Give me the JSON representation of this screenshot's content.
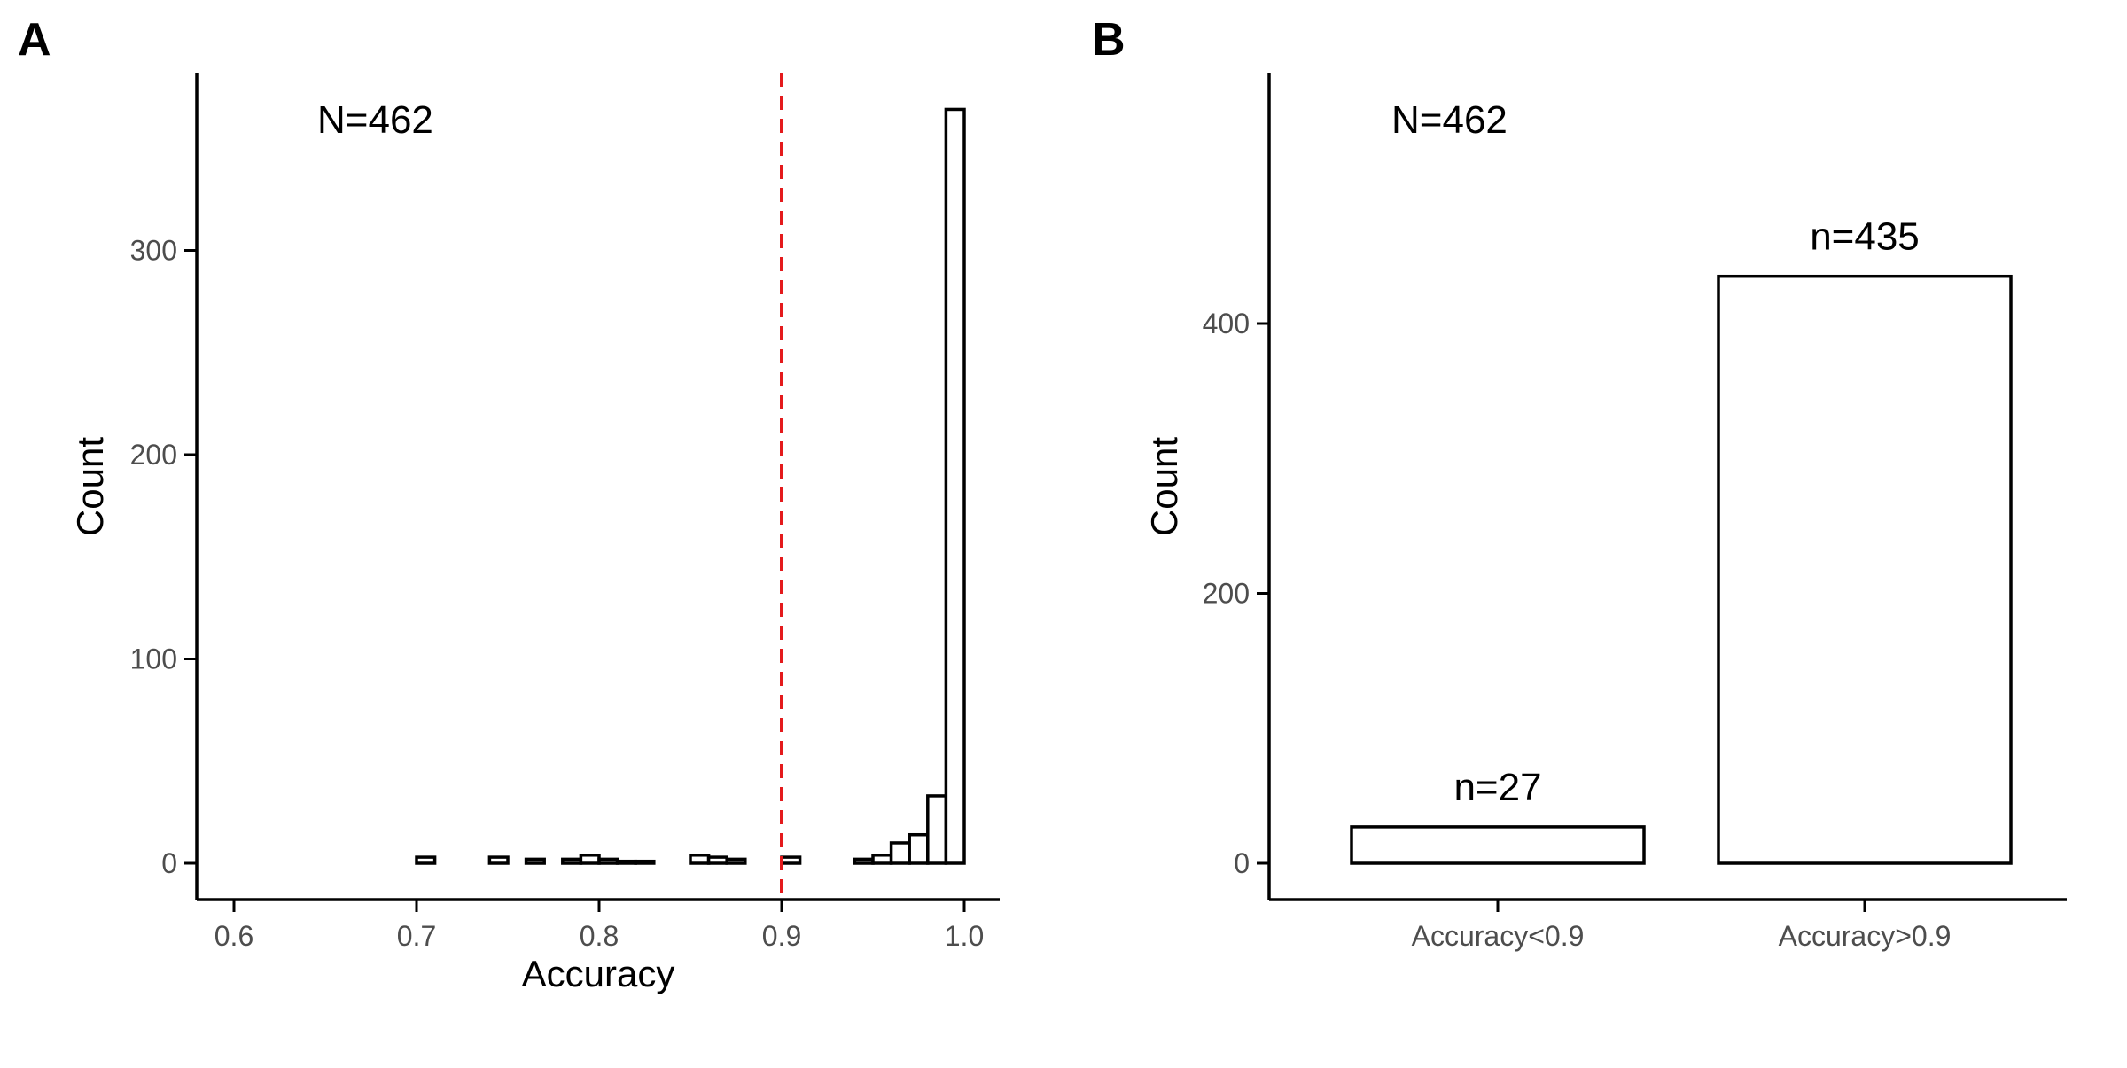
{
  "chart_data": [
    {
      "type": "bar",
      "panel": "A",
      "xlabel": "Accuracy",
      "ylabel": "Count",
      "xlim": [
        0.6,
        1.0
      ],
      "ylim": [
        0,
        370
      ],
      "x_ticks": [
        "0.6",
        "0.7",
        "0.8",
        "0.9",
        "1.0"
      ],
      "x_tick_values": [
        0.6,
        0.7,
        0.8,
        0.9,
        1.0
      ],
      "y_ticks": [
        "0",
        "100",
        "200",
        "300"
      ],
      "y_tick_values": [
        0,
        100,
        200,
        300
      ],
      "annotation": "N=462",
      "reference_line": {
        "x": 0.9,
        "color": "#e41a1c",
        "style": "dashed"
      },
      "bin_width": 0.01,
      "bins": [
        {
          "x0": 0.6,
          "count": 0
        },
        {
          "x0": 0.61,
          "count": 0
        },
        {
          "x0": 0.62,
          "count": 0
        },
        {
          "x0": 0.63,
          "count": 0
        },
        {
          "x0": 0.64,
          "count": 0
        },
        {
          "x0": 0.65,
          "count": 0
        },
        {
          "x0": 0.66,
          "count": 0
        },
        {
          "x0": 0.67,
          "count": 0
        },
        {
          "x0": 0.68,
          "count": 0
        },
        {
          "x0": 0.69,
          "count": 0
        },
        {
          "x0": 0.7,
          "count": 3
        },
        {
          "x0": 0.71,
          "count": 0
        },
        {
          "x0": 0.72,
          "count": 0
        },
        {
          "x0": 0.73,
          "count": 0
        },
        {
          "x0": 0.74,
          "count": 3
        },
        {
          "x0": 0.75,
          "count": 0
        },
        {
          "x0": 0.76,
          "count": 2
        },
        {
          "x0": 0.77,
          "count": 0
        },
        {
          "x0": 0.78,
          "count": 2
        },
        {
          "x0": 0.79,
          "count": 4
        },
        {
          "x0": 0.8,
          "count": 2
        },
        {
          "x0": 0.81,
          "count": 1
        },
        {
          "x0": 0.82,
          "count": 1
        },
        {
          "x0": 0.83,
          "count": 0
        },
        {
          "x0": 0.84,
          "count": 0
        },
        {
          "x0": 0.85,
          "count": 4
        },
        {
          "x0": 0.86,
          "count": 3
        },
        {
          "x0": 0.87,
          "count": 2
        },
        {
          "x0": 0.88,
          "count": 0
        },
        {
          "x0": 0.89,
          "count": 0
        },
        {
          "x0": 0.9,
          "count": 3
        },
        {
          "x0": 0.91,
          "count": 0
        },
        {
          "x0": 0.92,
          "count": 0
        },
        {
          "x0": 0.93,
          "count": 0
        },
        {
          "x0": 0.94,
          "count": 2
        },
        {
          "x0": 0.95,
          "count": 4
        },
        {
          "x0": 0.96,
          "count": 10
        },
        {
          "x0": 0.97,
          "count": 14
        },
        {
          "x0": 0.98,
          "count": 33
        },
        {
          "x0": 0.99,
          "count": 369
        }
      ],
      "grid": false
    },
    {
      "type": "bar",
      "panel": "B",
      "xlabel": "",
      "ylabel": "Count",
      "ylim": [
        0,
        575
      ],
      "y_ticks": [
        "0",
        "200",
        "400"
      ],
      "y_tick_values": [
        0,
        200,
        400
      ],
      "categories": [
        "Accuracy<0.9",
        "Accuracy>0.9"
      ],
      "values": [
        27,
        435
      ],
      "data_labels": [
        "n=27",
        "n=435"
      ],
      "annotation": "N=462",
      "grid": false
    }
  ]
}
